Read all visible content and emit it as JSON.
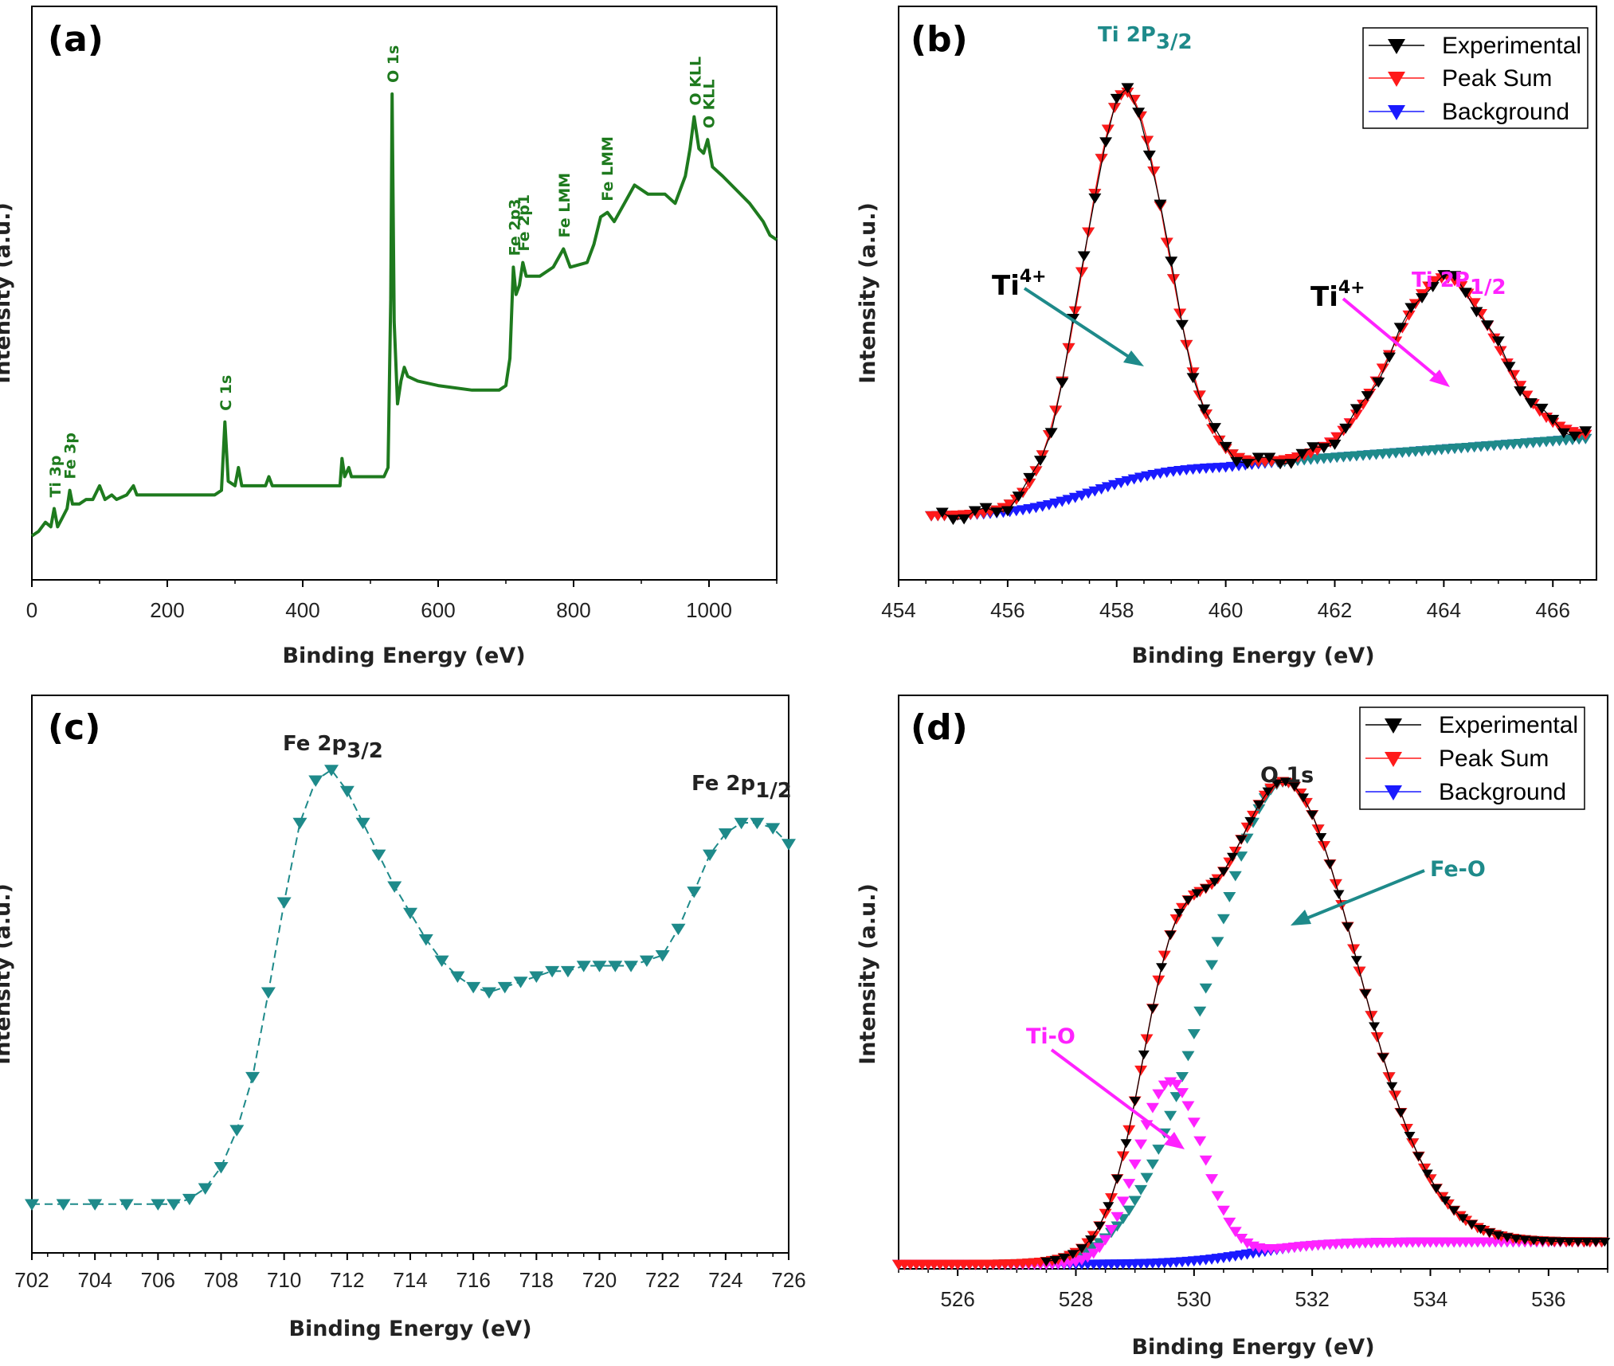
{
  "colors": {
    "green": "#1e7a1e",
    "teal": "#1e8a8a",
    "black": "#000000",
    "red": "#ff1a1a",
    "blue": "#1a1aff",
    "magenta": "#ff22ff"
  },
  "panels": {
    "a": {
      "label": "(a)",
      "xlabel": "Binding Energy (eV)",
      "ylabel": "Intensity (a.u.)"
    },
    "b": {
      "label": "(b)",
      "xlabel": "Binding Energy (eV)",
      "ylabel": "Intensity (a.u.)"
    },
    "c": {
      "label": "(c)",
      "xlabel": "Binding Energy (eV)",
      "ylabel": "Intensity (a.u.)"
    },
    "d": {
      "label": "(d)",
      "xlabel": "Binding Energy (eV)",
      "ylabel": "Intensity (a.u.)"
    }
  },
  "legend": {
    "experimental": "Experimental",
    "peak_sum": "Peak Sum",
    "background": "Background"
  },
  "chart_data": [
    {
      "panel": "a",
      "type": "line",
      "xlabel": "Binding Energy (eV)",
      "ylabel": "Intensity (a.u.)",
      "xlim": [
        0,
        1100
      ],
      "xticks": [
        0,
        200,
        400,
        600,
        800,
        1000
      ],
      "annotations": [
        {
          "text": "Ti 3p",
          "x": 33
        },
        {
          "text": "Fe 3p",
          "x": 55
        },
        {
          "text": "C 1s",
          "x": 285
        },
        {
          "text": "O 1s",
          "x": 532
        },
        {
          "text": "Fe 2p3",
          "x": 711
        },
        {
          "text": "Fe 2p1",
          "x": 725
        },
        {
          "text": "Fe LMM",
          "x": 785
        },
        {
          "text": "Fe LMM",
          "x": 848
        },
        {
          "text": "O KLL",
          "x": 978
        },
        {
          "text": "O KLL",
          "x": 998
        }
      ],
      "series": [
        {
          "values": [
            [
              0,
              0.03
            ],
            [
              10,
              0.04
            ],
            [
              20,
              0.06
            ],
            [
              28,
              0.05
            ],
            [
              33,
              0.09
            ],
            [
              38,
              0.05
            ],
            [
              45,
              0.07
            ],
            [
              52,
              0.09
            ],
            [
              56,
              0.13
            ],
            [
              60,
              0.1
            ],
            [
              70,
              0.1
            ],
            [
              80,
              0.11
            ],
            [
              90,
              0.11
            ],
            [
              100,
              0.14
            ],
            [
              108,
              0.11
            ],
            [
              118,
              0.12
            ],
            [
              125,
              0.11
            ],
            [
              140,
              0.12
            ],
            [
              150,
              0.14
            ],
            [
              155,
              0.12
            ],
            [
              170,
              0.12
            ],
            [
              200,
              0.12
            ],
            [
              250,
              0.12
            ],
            [
              270,
              0.12
            ],
            [
              280,
              0.13
            ],
            [
              285,
              0.28
            ],
            [
              290,
              0.15
            ],
            [
              300,
              0.14
            ],
            [
              305,
              0.18
            ],
            [
              310,
              0.14
            ],
            [
              330,
              0.14
            ],
            [
              345,
              0.14
            ],
            [
              350,
              0.16
            ],
            [
              355,
              0.14
            ],
            [
              400,
              0.14
            ],
            [
              420,
              0.14
            ],
            [
              440,
              0.14
            ],
            [
              455,
              0.14
            ],
            [
              458,
              0.2
            ],
            [
              462,
              0.16
            ],
            [
              468,
              0.18
            ],
            [
              472,
              0.16
            ],
            [
              500,
              0.16
            ],
            [
              520,
              0.16
            ],
            [
              526,
              0.18
            ],
            [
              530,
              0.55
            ],
            [
              532,
              1.0
            ],
            [
              535,
              0.5
            ],
            [
              540,
              0.32
            ],
            [
              545,
              0.37
            ],
            [
              550,
              0.4
            ],
            [
              555,
              0.38
            ],
            [
              570,
              0.37
            ],
            [
              600,
              0.36
            ],
            [
              650,
              0.35
            ],
            [
              690,
              0.35
            ],
            [
              700,
              0.36
            ],
            [
              706,
              0.42
            ],
            [
              711,
              0.62
            ],
            [
              715,
              0.56
            ],
            [
              720,
              0.58
            ],
            [
              725,
              0.63
            ],
            [
              730,
              0.6
            ],
            [
              750,
              0.6
            ],
            [
              770,
              0.62
            ],
            [
              785,
              0.66
            ],
            [
              795,
              0.62
            ],
            [
              820,
              0.63
            ],
            [
              830,
              0.67
            ],
            [
              840,
              0.73
            ],
            [
              850,
              0.74
            ],
            [
              860,
              0.72
            ],
            [
              875,
              0.76
            ],
            [
              890,
              0.8
            ],
            [
              910,
              0.78
            ],
            [
              935,
              0.78
            ],
            [
              950,
              0.76
            ],
            [
              965,
              0.82
            ],
            [
              972,
              0.88
            ],
            [
              978,
              0.95
            ],
            [
              985,
              0.88
            ],
            [
              992,
              0.87
            ],
            [
              998,
              0.9
            ],
            [
              1005,
              0.84
            ],
            [
              1020,
              0.82
            ],
            [
              1040,
              0.79
            ],
            [
              1060,
              0.76
            ],
            [
              1080,
              0.72
            ],
            [
              1090,
              0.69
            ],
            [
              1100,
              0.68
            ]
          ]
        }
      ]
    },
    {
      "panel": "b",
      "type": "scatter",
      "xlabel": "Binding Energy (eV)",
      "ylabel": "Intensity (a.u.)",
      "xlim": [
        454,
        466.8
      ],
      "xticks": [
        454,
        456,
        458,
        460,
        462,
        464,
        466
      ],
      "annotations": [
        {
          "text": "Ti 2P3/2",
          "x": 458.2
        },
        {
          "text": "Ti4+",
          "x": 456.9
        },
        {
          "text": "Ti4+",
          "x": 462.1
        },
        {
          "text": "Ti 2P1/2",
          "x": 464.5
        }
      ],
      "series": [
        {
          "name": "Experimental"
        },
        {
          "name": "Peak Sum"
        },
        {
          "name": "Background"
        }
      ]
    },
    {
      "panel": "c",
      "type": "scatter",
      "xlabel": "Binding Energy (eV)",
      "ylabel": "Intensity (a.u.)",
      "xlim": [
        702,
        726
      ],
      "xticks": [
        702,
        704,
        706,
        708,
        710,
        712,
        714,
        716,
        718,
        720,
        722,
        724,
        726
      ],
      "annotations": [
        {
          "text": "Fe 2p3/2",
          "x": 711.3
        },
        {
          "text": "Fe 2p1/2",
          "x": 724.8
        }
      ],
      "series": [
        {
          "values": [
            [
              702,
              0.08
            ],
            [
              703,
              0.08
            ],
            [
              704,
              0.08
            ],
            [
              705,
              0.08
            ],
            [
              706,
              0.08
            ],
            [
              706.5,
              0.08
            ],
            [
              707,
              0.09
            ],
            [
              707.5,
              0.11
            ],
            [
              708,
              0.15
            ],
            [
              708.5,
              0.22
            ],
            [
              709,
              0.32
            ],
            [
              709.5,
              0.48
            ],
            [
              710,
              0.65
            ],
            [
              710.5,
              0.8
            ],
            [
              711,
              0.88
            ],
            [
              711.5,
              0.9
            ],
            [
              712,
              0.86
            ],
            [
              712.5,
              0.8
            ],
            [
              713,
              0.74
            ],
            [
              713.5,
              0.68
            ],
            [
              714,
              0.63
            ],
            [
              714.5,
              0.58
            ],
            [
              715,
              0.54
            ],
            [
              715.5,
              0.51
            ],
            [
              716,
              0.49
            ],
            [
              716.5,
              0.48
            ],
            [
              717,
              0.49
            ],
            [
              717.5,
              0.5
            ],
            [
              718,
              0.51
            ],
            [
              718.5,
              0.52
            ],
            [
              719,
              0.52
            ],
            [
              719.5,
              0.53
            ],
            [
              720,
              0.53
            ],
            [
              720.5,
              0.53
            ],
            [
              721,
              0.53
            ],
            [
              721.5,
              0.54
            ],
            [
              722,
              0.55
            ],
            [
              722.5,
              0.6
            ],
            [
              723,
              0.67
            ],
            [
              723.5,
              0.74
            ],
            [
              724,
              0.78
            ],
            [
              724.5,
              0.8
            ],
            [
              725,
              0.8
            ],
            [
              725.5,
              0.79
            ],
            [
              726,
              0.76
            ]
          ]
        }
      ]
    },
    {
      "panel": "d",
      "type": "scatter",
      "xlabel": "Binding Energy (eV)",
      "ylabel": "Intensity (a.u.)",
      "xlim": [
        525,
        537
      ],
      "xticks": [
        526,
        528,
        530,
        532,
        534,
        536
      ],
      "annotations": [
        {
          "text": "O 1s",
          "x": 531.5
        },
        {
          "text": "Fe-O",
          "x": 533.9
        },
        {
          "text": "Ti-O",
          "x": 528.3
        }
      ],
      "series": [
        {
          "name": "Experimental"
        },
        {
          "name": "Peak Sum"
        },
        {
          "name": "Background"
        }
      ]
    }
  ]
}
